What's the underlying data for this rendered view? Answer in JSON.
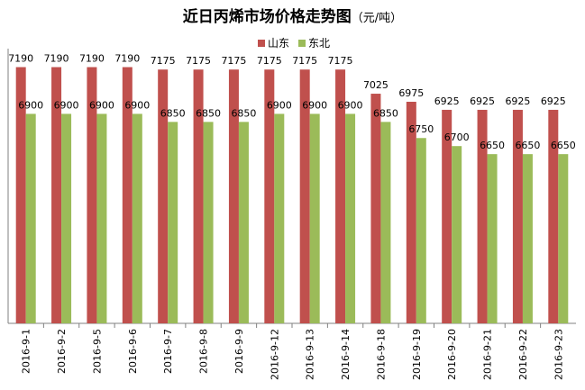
{
  "chart_data": {
    "type": "bar",
    "title": "近日丙烯市场价格走势图",
    "title_unit": "（元/吨）",
    "categories": [
      "2016-9-1",
      "2016-9-2",
      "2016-9-5",
      "2016-9-6",
      "2016-9-7",
      "2016-9-8",
      "2016-9-9",
      "2016-9-12",
      "2016-9-13",
      "2016-9-14",
      "2016-9-18",
      "2016-9-19",
      "2016-9-20",
      "2016-9-21",
      "2016-9-22",
      "2016-9-23"
    ],
    "series": [
      {
        "name": "山东",
        "color": "#c0504d",
        "values": [
          7190,
          7190,
          7190,
          7190,
          7175,
          7175,
          7175,
          7175,
          7175,
          7175,
          7025,
          6975,
          6925,
          6925,
          6925,
          6925
        ]
      },
      {
        "name": "东北",
        "color": "#9bbb59",
        "values": [
          6900,
          6900,
          6900,
          6900,
          6850,
          6850,
          6850,
          6900,
          6900,
          6900,
          6850,
          6750,
          6700,
          6650,
          6650,
          6650
        ]
      }
    ],
    "ylim": [
      5600,
      7260
    ],
    "legend_position": "top-center",
    "grid": false,
    "data_labels": true
  }
}
